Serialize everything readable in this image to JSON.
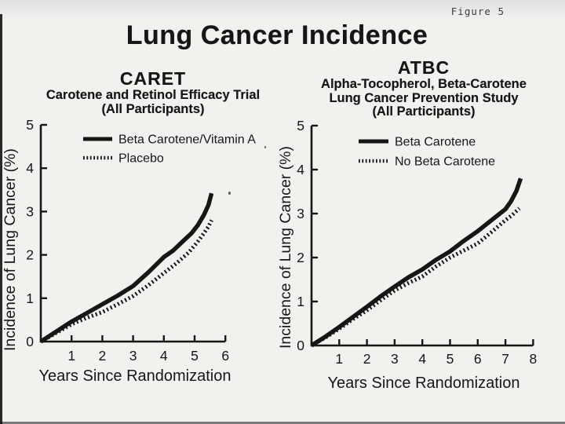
{
  "page": {
    "figure_label": "Figure 5",
    "title": "Lung Cancer Incidence",
    "paper_color": "#f2f1ee",
    "ink_color": "#161616"
  },
  "chart_data": [
    {
      "type": "line",
      "title": "CARET",
      "subtitle_lines": [
        "Carotene and Retinol Efficacy Trial",
        "(All Participants)"
      ],
      "xlabel": "Years Since Randomization",
      "ylabel": "Incidence of Lung Cancer (%)",
      "xlim": [
        0,
        6
      ],
      "ylim": [
        0,
        5
      ],
      "xticks": [
        1,
        2,
        3,
        4,
        5,
        6
      ],
      "yticks": [
        0,
        1,
        2,
        3,
        4,
        5
      ],
      "grid": false,
      "legend_position": "upper-left",
      "series": [
        {
          "name": "Beta Carotene/Vitamin A",
          "style": "solid",
          "points": [
            [
              0,
              0
            ],
            [
              0.5,
              0.23
            ],
            [
              1,
              0.46
            ],
            [
              1.5,
              0.66
            ],
            [
              2,
              0.86
            ],
            [
              2.5,
              1.06
            ],
            [
              3,
              1.28
            ],
            [
              3.5,
              1.6
            ],
            [
              4,
              1.95
            ],
            [
              4.3,
              2.1
            ],
            [
              4.6,
              2.3
            ],
            [
              4.9,
              2.5
            ],
            [
              5.1,
              2.68
            ],
            [
              5.3,
              2.92
            ],
            [
              5.45,
              3.15
            ],
            [
              5.55,
              3.42
            ]
          ]
        },
        {
          "name": "Placebo",
          "style": "dotted",
          "points": [
            [
              0,
              0
            ],
            [
              0.5,
              0.2
            ],
            [
              1,
              0.4
            ],
            [
              1.5,
              0.55
            ],
            [
              2,
              0.68
            ],
            [
              2.5,
              0.86
            ],
            [
              3,
              1.05
            ],
            [
              3.5,
              1.3
            ],
            [
              4,
              1.58
            ],
            [
              4.4,
              1.8
            ],
            [
              4.8,
              2.05
            ],
            [
              5.1,
              2.3
            ],
            [
              5.3,
              2.5
            ],
            [
              5.45,
              2.65
            ],
            [
              5.55,
              2.8
            ]
          ]
        }
      ]
    },
    {
      "type": "line",
      "title": "ATBC",
      "subtitle_lines": [
        "Alpha-Tocopherol, Beta-Carotene",
        "Lung Cancer Prevention Study",
        "(All Participants)"
      ],
      "xlabel": "Years Since Randomization",
      "ylabel": "Incidence of Lung Cancer (%)",
      "xlim": [
        0,
        8
      ],
      "ylim": [
        0,
        5
      ],
      "xticks": [
        1,
        2,
        3,
        4,
        5,
        6,
        7,
        8
      ],
      "yticks": [
        0,
        1,
        2,
        3,
        4,
        5
      ],
      "grid": false,
      "legend_position": "upper-left",
      "series": [
        {
          "name": "Beta Carotene",
          "style": "solid",
          "points": [
            [
              0,
              0
            ],
            [
              0.5,
              0.2
            ],
            [
              1,
              0.42
            ],
            [
              1.5,
              0.65
            ],
            [
              2,
              0.88
            ],
            [
              2.5,
              1.12
            ],
            [
              3,
              1.34
            ],
            [
              3.5,
              1.55
            ],
            [
              4,
              1.73
            ],
            [
              4.5,
              1.95
            ],
            [
              5,
              2.14
            ],
            [
              5.5,
              2.38
            ],
            [
              6,
              2.6
            ],
            [
              6.5,
              2.85
            ],
            [
              7,
              3.1
            ],
            [
              7.2,
              3.28
            ],
            [
              7.4,
              3.52
            ],
            [
              7.55,
              3.8
            ]
          ]
        },
        {
          "name": "No Beta Carotene",
          "style": "dotted",
          "points": [
            [
              0,
              0
            ],
            [
              0.5,
              0.18
            ],
            [
              1,
              0.38
            ],
            [
              1.5,
              0.6
            ],
            [
              2,
              0.8
            ],
            [
              2.5,
              1.03
            ],
            [
              3,
              1.25
            ],
            [
              3.5,
              1.42
            ],
            [
              4,
              1.57
            ],
            [
              4.5,
              1.8
            ],
            [
              5,
              2.0
            ],
            [
              5.5,
              2.16
            ],
            [
              6,
              2.32
            ],
            [
              6.5,
              2.58
            ],
            [
              7,
              2.85
            ],
            [
              7.25,
              2.97
            ],
            [
              7.5,
              3.12
            ]
          ]
        }
      ]
    }
  ]
}
